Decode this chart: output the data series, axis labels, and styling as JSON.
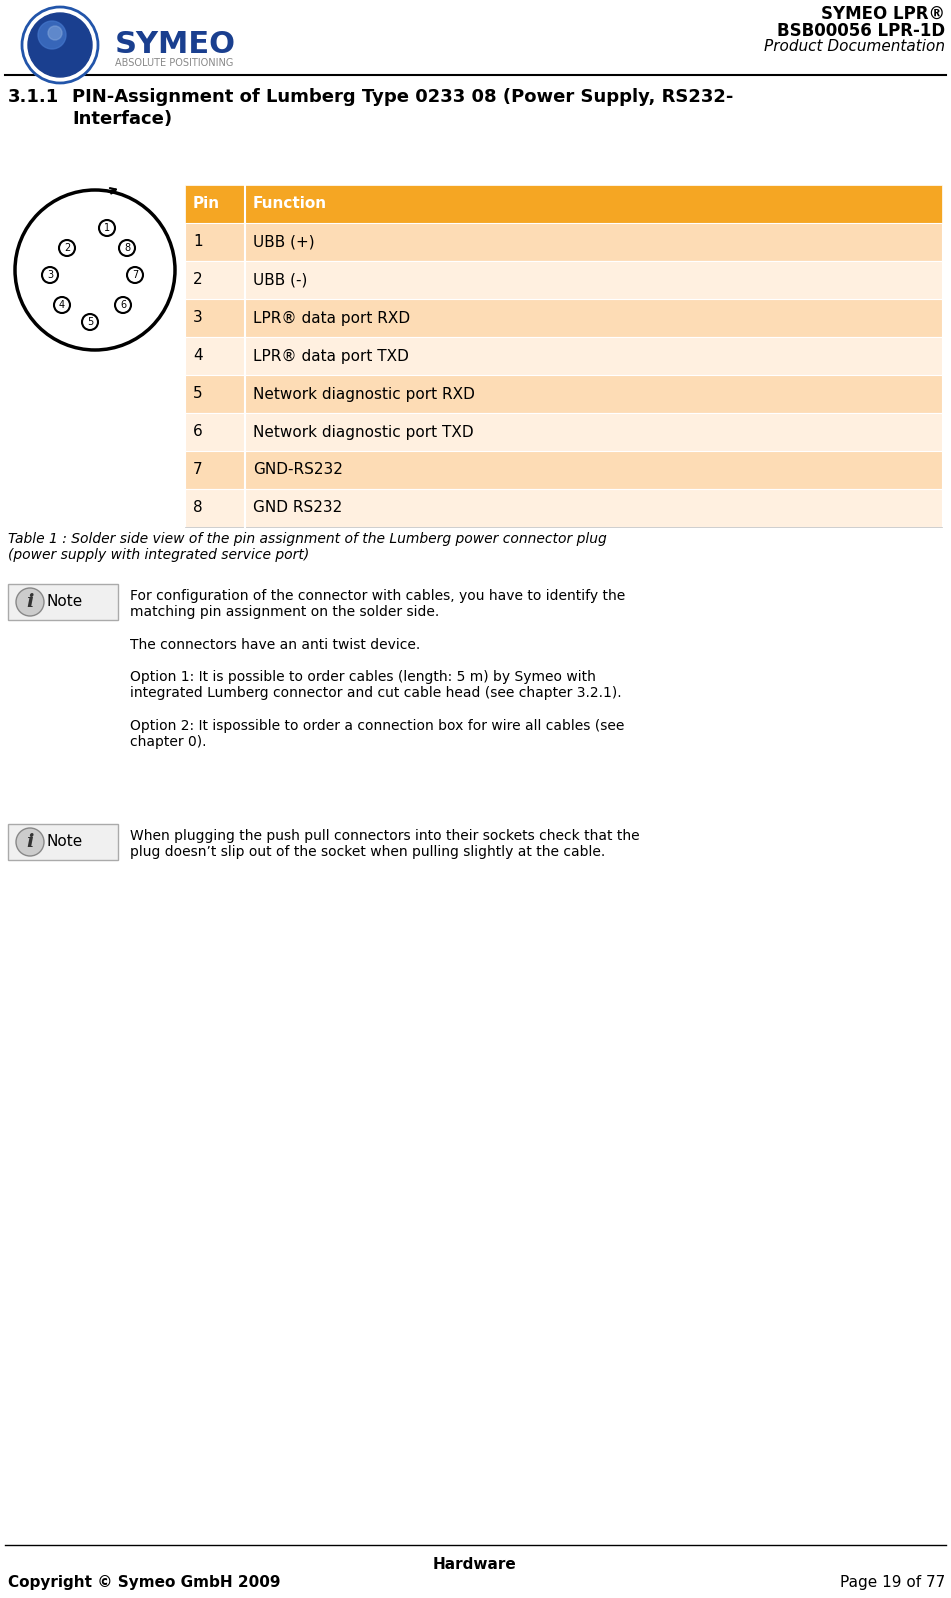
{
  "header_title_line1": "SYMEO LPR®",
  "header_title_line2": "BSB00056 LPR-1D",
  "header_title_line3": "Product Documentation",
  "section_title": "3.1.1",
  "section_heading": "PIN-Assignment of Lumberg Type 0233 08 (Power Supply, RS232-\nInterface)",
  "table_header": [
    "Pin",
    "Function"
  ],
  "table_rows": [
    [
      "1",
      "UBB (+)"
    ],
    [
      "2",
      "UBB (-)"
    ],
    [
      "3",
      "LPR® data port RXD"
    ],
    [
      "4",
      "LPR® data port TXD"
    ],
    [
      "5",
      "Network diagnostic port RXD"
    ],
    [
      "6",
      "Network diagnostic port TXD"
    ],
    [
      "7",
      "GND-RS232"
    ],
    [
      "8",
      "GND RS232"
    ]
  ],
  "table_header_color": "#F5A623",
  "table_row_odd_color": "#FDDCB5",
  "table_row_even_color": "#FFF0E0",
  "table_caption": "Table 1 : Solder side view of the pin assignment of the Lumberg power connector plug\n(power supply with integrated service port)",
  "note_text1": "For configuration of the connector with cables, you have to identify the\nmatching pin assignment on the solder side.\n\nThe connectors have an anti twist device.\n\nOption 1: It is possible to order cables (length: 5 m) by Symeo with\nintegrated Lumberg connector and cut cable head (see chapter 3.2.1).\n\nOption 2: It ispossible to order a connection box for wire all cables (see\nchapter 0).",
  "note_text2": "When plugging the push pull connectors into their sockets check that the\nplug doesn’t slip out of the socket when pulling slightly at the cable.",
  "footer_center": "Hardware",
  "footer_left": "Copyright © Symeo GmbH 2009",
  "footer_right": "Page 19 of 77",
  "header_line_color": "#000000",
  "footer_line_color": "#000000",
  "note_box_color": "#E8E8E8",
  "note_box_border": "#AAAAAA",
  "bg_color": "#FFFFFF",
  "text_color": "#000000",
  "orange_header": "#F5A623"
}
